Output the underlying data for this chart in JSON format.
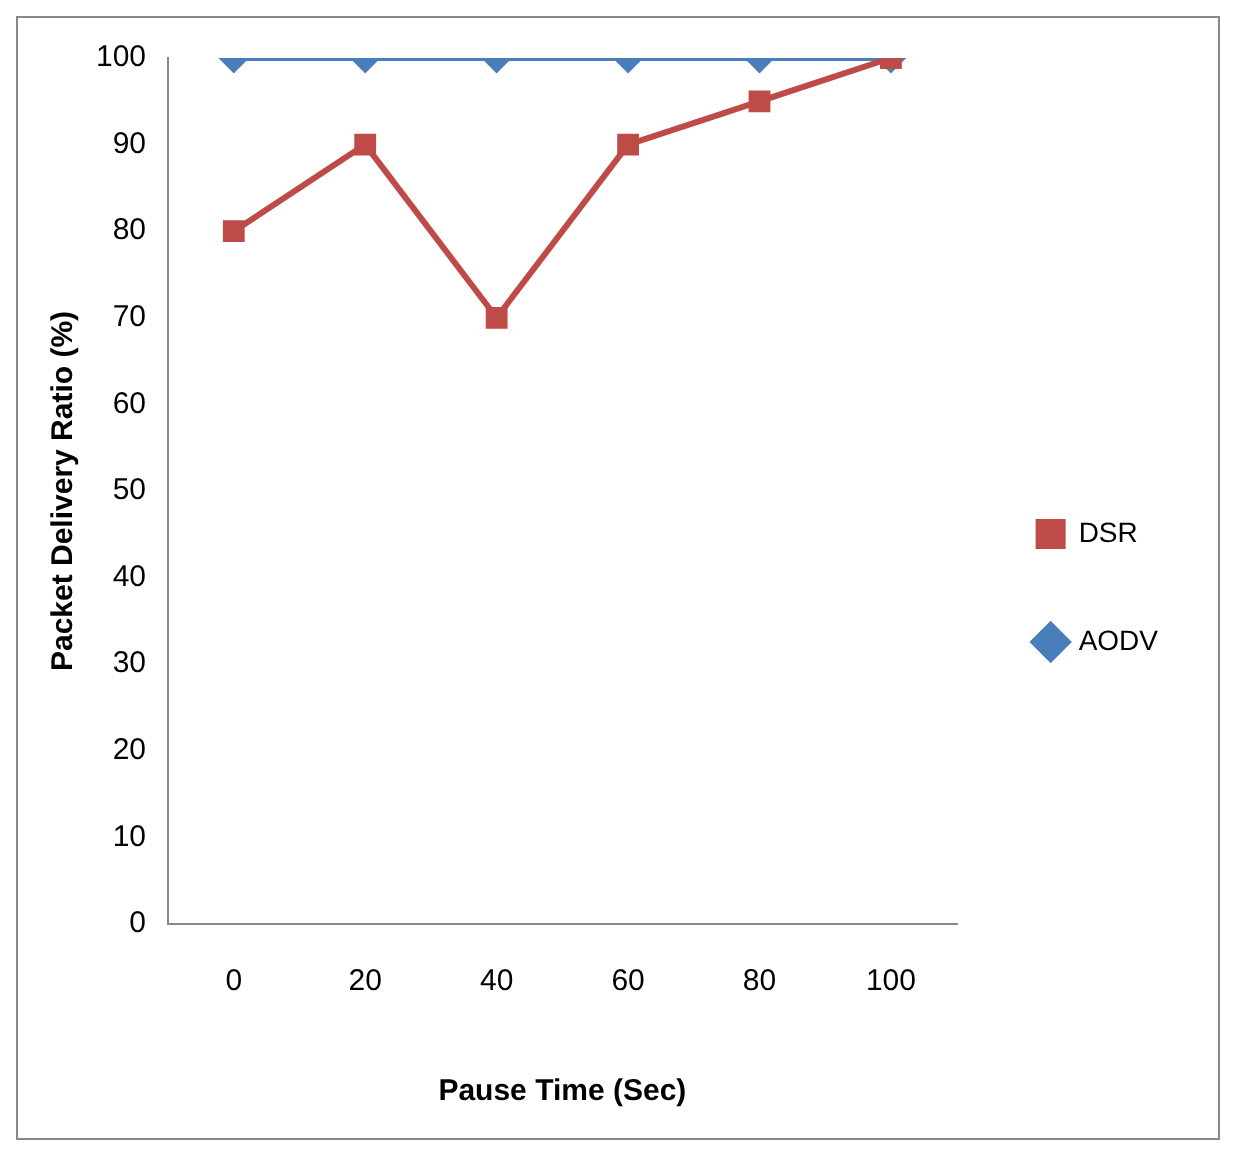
{
  "chart_data": {
    "type": "line",
    "xlabel": "Pause Time (Sec)",
    "ylabel": "Packet Delivery Ratio (%)",
    "categories": [
      "0",
      "20",
      "40",
      "60",
      "80",
      "100"
    ],
    "series": [
      {
        "name": "AODV",
        "color": "#4a7ebb",
        "marker": "diamond",
        "values": [
          100,
          100,
          100,
          100,
          100,
          100
        ]
      },
      {
        "name": "DSR",
        "color": "#be4b48",
        "marker": "square",
        "values": [
          80,
          90,
          70,
          90,
          95,
          100
        ]
      }
    ],
    "ylim": [
      0,
      100
    ],
    "yticks": [
      0,
      10,
      20,
      30,
      40,
      50,
      60,
      70,
      80,
      90,
      100
    ],
    "grid": false,
    "legend": "right",
    "line_style": "solid"
  }
}
